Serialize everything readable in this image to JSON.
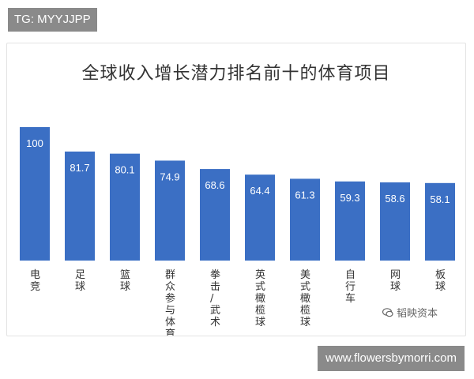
{
  "overlays": {
    "tg_label": "TG: MYYJJPP",
    "url_label": "www.flowersbymorri.com"
  },
  "watermark": {
    "text": "韬映资本",
    "icon": "chat-bubble-icon"
  },
  "colors": {
    "bar": "#3b6fc4",
    "bar_label": "#ffffff",
    "category_label": "#333333"
  },
  "chart_data": {
    "type": "bar",
    "title": "全球收入增长潜力排名前十的体育项目",
    "categories": [
      "电竞",
      "足球",
      "篮球",
      "群众参与体育",
      "拳击/武术",
      "英式橄榄球",
      "美式橄榄球",
      "自行车",
      "网球",
      "板球"
    ],
    "values": [
      100,
      81.7,
      80.1,
      74.9,
      68.6,
      64.4,
      61.3,
      59.3,
      58.6,
      58.1
    ],
    "value_labels": [
      "100",
      "81.7",
      "80.1",
      "74.9",
      "68.6",
      "64.4",
      "61.3",
      "59.3",
      "58.6",
      "58.1"
    ],
    "ylim": [
      0,
      100
    ],
    "xlabel": "",
    "ylabel": "",
    "grid": false,
    "legend": "none"
  }
}
